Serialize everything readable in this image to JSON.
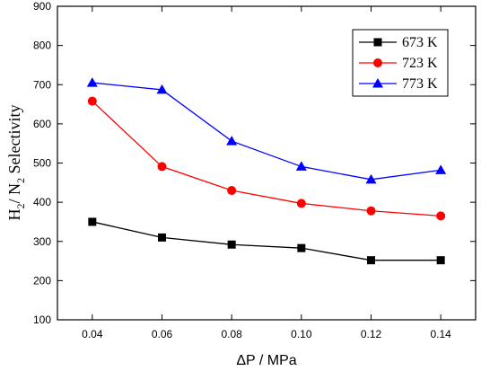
{
  "chart_data": {
    "type": "line",
    "xlabel": "ΔP / MPa",
    "ylabel": {
      "h": "H",
      "h_sub": "2",
      "slash": "/ N",
      "n_sub": "2",
      "rest": " Selectivity"
    },
    "x": [
      0.04,
      0.06,
      0.08,
      0.1,
      0.12,
      0.14
    ],
    "xticks": [
      "0.04",
      "0.06",
      "0.08",
      "0.10",
      "0.12",
      "0.14"
    ],
    "xlim": [
      0.03,
      0.15
    ],
    "ylim": [
      100,
      900
    ],
    "yticks": [
      "100",
      "200",
      "300",
      "400",
      "500",
      "600",
      "700",
      "800",
      "900"
    ],
    "grid": false,
    "legend_position": "top-right",
    "series": [
      {
        "name": "673 K",
        "color": "#000000",
        "marker": "square",
        "values": [
          350,
          310,
          292,
          283,
          252,
          252
        ]
      },
      {
        "name": "723 K",
        "color": "#ff0000",
        "marker": "circle",
        "values": [
          658,
          491,
          430,
          397,
          378,
          365
        ]
      },
      {
        "name": "773 K",
        "color": "#0000ff",
        "marker": "triangle",
        "values": [
          705,
          687,
          556,
          491,
          458,
          482
        ]
      }
    ]
  }
}
